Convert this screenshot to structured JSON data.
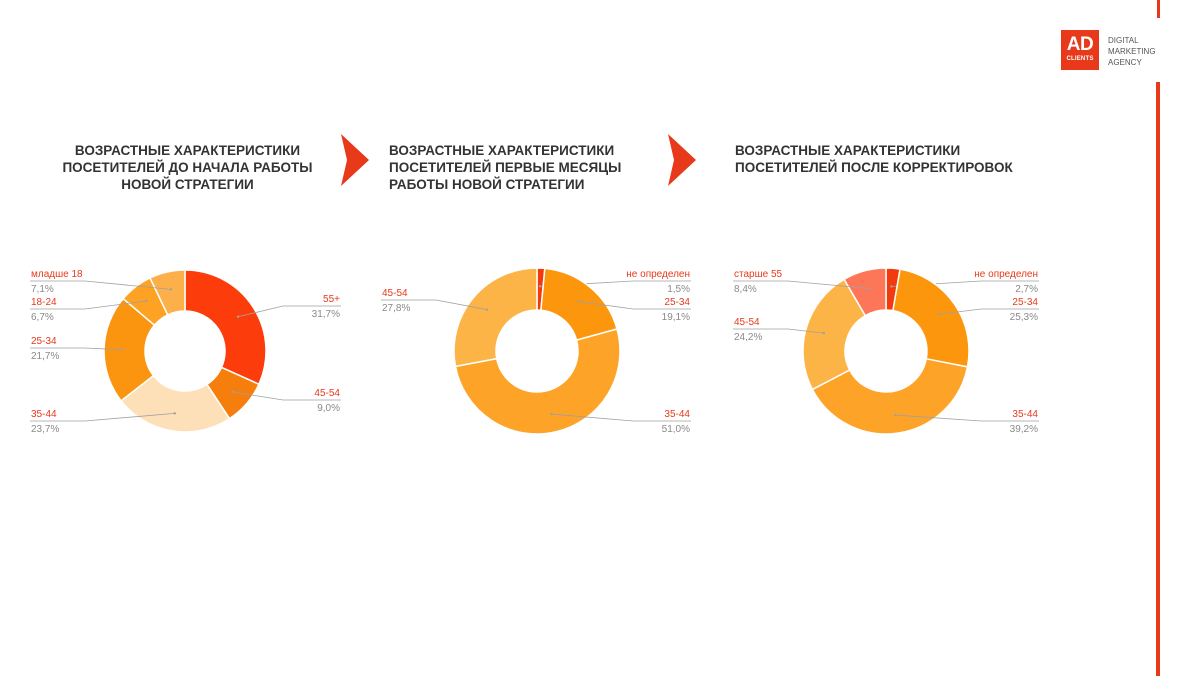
{
  "brand": {
    "logo_main": "AD",
    "logo_sub": "CLIENTS",
    "tagline": [
      "DIGITAL",
      "MARKETING",
      "AGENCY"
    ]
  },
  "colors": {
    "accent": "#e8391a",
    "label_red": "#e8391a",
    "value_gray": "#8a8a8a",
    "leader": "#a0a0a0"
  },
  "titles": [
    [
      "ВОЗРАСТНЫЕ ХАРАКТЕРИСТИКИ",
      "ПОСЕТИТЕЛЕЙ ДО НАЧАЛА РАБОТЫ",
      "НОВОЙ СТРАТЕГИИ"
    ],
    [
      "ВОЗРАСТНЫЕ ХАРАКТЕРИСТИКИ",
      "ПОСЕТИТЕЛЕЙ ПЕРВЫЕ МЕСЯЦЫ",
      "РАБОТЫ НОВОЙ СТРАТЕГИИ"
    ],
    [
      "ВОЗРАСТНЫЕ ХАРАКТЕРИСТИКИ",
      "ПОСЕТИТЕЛЕЙ ПОСЛЕ КОРРЕКТИРОВОК"
    ]
  ],
  "chart_data": [
    {
      "type": "pie",
      "donut": true,
      "title": "ВОЗРАСТНЫЕ ХАРАКТЕРИСТИКИ ПОСЕТИТЕЛЕЙ ДО НАЧАЛА РАБОТЫ НОВОЙ СТРАТЕГИИ",
      "slices": [
        {
          "label": "55+",
          "value": 31.7,
          "value_text": "31,7%",
          "color": "#fc3c0b",
          "side": "right"
        },
        {
          "label": "45-54",
          "value": 9.0,
          "value_text": "9,0%",
          "color": "#f57e0c",
          "side": "right"
        },
        {
          "label": "35-44",
          "value": 23.7,
          "value_text": "23,7%",
          "color": "#fddfb8",
          "side": "left"
        },
        {
          "label": "25-34",
          "value": 21.7,
          "value_text": "21,7%",
          "color": "#fb9510",
          "side": "left"
        },
        {
          "label": "18-24",
          "value": 6.7,
          "value_text": "6,7%",
          "color": "#fda223",
          "side": "left"
        },
        {
          "label": "младше 18",
          "value": 7.1,
          "value_text": "7,1%",
          "color": "#fdb04a",
          "side": "left"
        }
      ]
    },
    {
      "type": "pie",
      "donut": true,
      "title": "ВОЗРАСТНЫЕ ХАРАКТЕРИСТИКИ ПОСЕТИТЕЛЕЙ ПЕРВЫЕ МЕСЯЦЫ РАБОТЫ НОВОЙ СТРАТЕГИИ",
      "slices": [
        {
          "label": "не определен",
          "value": 1.5,
          "value_text": "1,5%",
          "color": "#f23a0e",
          "side": "right"
        },
        {
          "label": "25-34",
          "value": 19.1,
          "value_text": "19,1%",
          "color": "#fb960d",
          "side": "right"
        },
        {
          "label": "35-44",
          "value": 51.0,
          "value_text": "51,0%",
          "color": "#fda428",
          "side": "right"
        },
        {
          "label": "45-54",
          "value": 27.8,
          "value_text": "27,8%",
          "color": "#fdb447",
          "side": "left"
        }
      ]
    },
    {
      "type": "pie",
      "donut": true,
      "title": "ВОЗРАСТНЫЕ ХАРАКТЕРИСТИКИ ПОСЕТИТЕЛЕЙ ПОСЛЕ КОРРЕКТИРОВОК",
      "slices": [
        {
          "label": "не определен",
          "value": 2.7,
          "value_text": "2,7%",
          "color": "#f23a0e",
          "side": "right"
        },
        {
          "label": "25-34",
          "value": 25.3,
          "value_text": "25,3%",
          "color": "#fb960d",
          "side": "right"
        },
        {
          "label": "35-44",
          "value": 39.2,
          "value_text": "39,2%",
          "color": "#fda428",
          "side": "right"
        },
        {
          "label": "45-54",
          "value": 24.2,
          "value_text": "24,2%",
          "color": "#fdb447",
          "side": "left"
        },
        {
          "label": "старше 55",
          "value": 8.4,
          "value_text": "8,4%",
          "color": "#fd7658",
          "side": "left"
        }
      ]
    }
  ]
}
